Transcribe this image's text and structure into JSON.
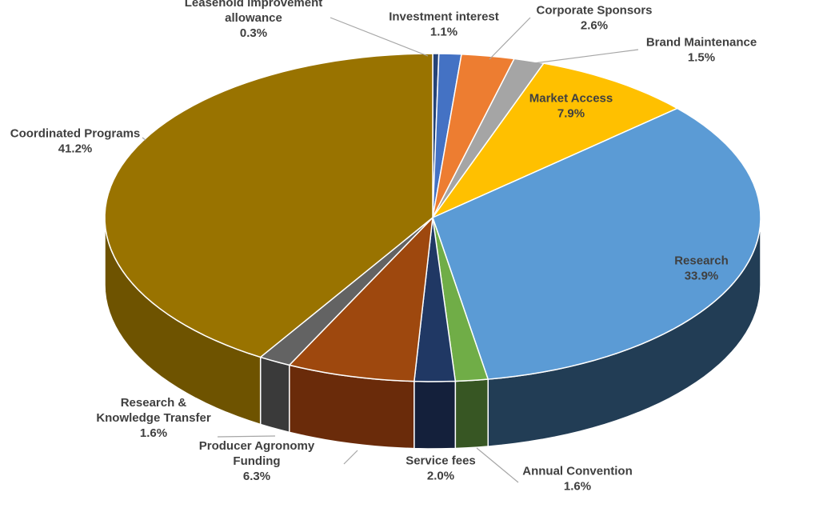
{
  "chart_data": {
    "type": "pie",
    "style": "3d-exploded-pie",
    "start_category": "Leasehold improvement allowance",
    "direction": "clockwise",
    "slices": [
      {
        "label": [
          "Leasehold improvement",
          "allowance"
        ],
        "pct_text": "0.3%",
        "value": 0.3,
        "color": "#264478",
        "side": "#16294a"
      },
      {
        "label": [
          "Investment interest"
        ],
        "pct_text": "1.1%",
        "value": 1.1,
        "color": "#4472c4",
        "side": "#26427a"
      },
      {
        "label": [
          "Corporate Sponsors"
        ],
        "pct_text": "2.6%",
        "value": 2.6,
        "color": "#ed7d31",
        "side": "#8a4316"
      },
      {
        "label": [
          "Brand Maintenance"
        ],
        "pct_text": "1.5%",
        "value": 1.5,
        "color": "#a5a5a5",
        "side": "#5e5e5e"
      },
      {
        "label": [
          "Market Access"
        ],
        "pct_text": "7.9%",
        "value": 7.9,
        "color": "#ffc000",
        "side": "#9a7400"
      },
      {
        "label": [
          "Research"
        ],
        "pct_text": "33.9%",
        "value": 33.9,
        "color": "#5b9bd5",
        "side": "#223d55"
      },
      {
        "label": [
          "Annual Convention"
        ],
        "pct_text": "1.6%",
        "value": 1.6,
        "color": "#70ad47",
        "side": "#375623"
      },
      {
        "label": [
          "Service fees"
        ],
        "pct_text": "2.0%",
        "value": 2.0,
        "color": "#203864",
        "side": "#14203b"
      },
      {
        "label": [
          "Producer Agronomy",
          "Funding"
        ],
        "pct_text": "6.3%",
        "value": 6.3,
        "color": "#9e480e",
        "side": "#6a2b0a"
      },
      {
        "label": [
          "Research &",
          "Knowledge Transfer"
        ],
        "pct_text": "1.6%",
        "value": 1.6,
        "color": "#636363",
        "side": "#3a3a3a"
      },
      {
        "label": [
          "Coordinated Programs"
        ],
        "pct_text": "41.2%",
        "value": 41.2,
        "color": "#997300",
        "side": "#6e5300"
      }
    ],
    "legend": "none",
    "data_labels": "category name and percentage"
  }
}
